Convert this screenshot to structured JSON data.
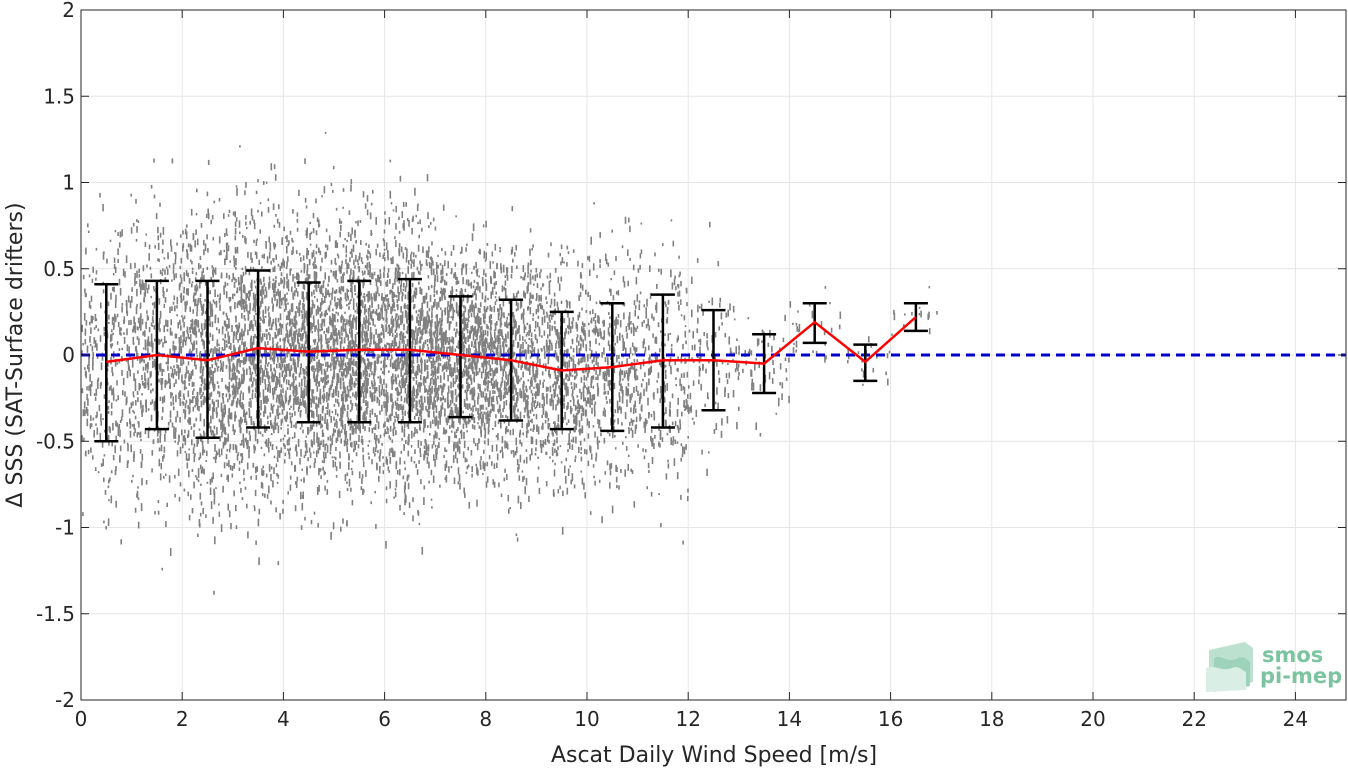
{
  "chart_data": {
    "type": "scatter",
    "title": "",
    "xlabel": "Ascat Daily Wind Speed [m/s]",
    "ylabel": "Δ SSS (SAT-Surface drifters)",
    "xlim": [
      0,
      25
    ],
    "ylim": [
      -2,
      2
    ],
    "xticks": [
      0,
      2,
      4,
      6,
      8,
      10,
      12,
      14,
      16,
      18,
      20,
      22,
      24
    ],
    "yticks": [
      2,
      1.5,
      1,
      0.5,
      0,
      -0.5,
      -1,
      -1.5,
      -2
    ],
    "grid": true,
    "colors": {
      "scatter": "#808080",
      "mean_line": "#ff0000",
      "zero_line": "#0000cc",
      "error_bars": "#000000"
    },
    "scatter_points_note": "dense cloud of grey individual matchup points",
    "zero_line_y": 0,
    "binned_stats": {
      "x": [
        0.5,
        1.5,
        2.5,
        3.5,
        4.5,
        5.5,
        6.5,
        7.5,
        8.5,
        9.5,
        10.5,
        11.5,
        12.5,
        13.5,
        14.5,
        15.5,
        16.5
      ],
      "mean": [
        -0.04,
        0.0,
        -0.03,
        0.04,
        0.02,
        0.03,
        0.03,
        0.0,
        -0.03,
        -0.09,
        -0.07,
        -0.03,
        -0.03,
        -0.05,
        0.19,
        -0.04,
        0.22
      ],
      "upper": [
        0.41,
        0.43,
        0.43,
        0.49,
        0.42,
        0.43,
        0.44,
        0.34,
        0.32,
        0.25,
        0.3,
        0.35,
        0.26,
        0.12,
        0.3,
        0.06,
        0.3
      ],
      "lower": [
        -0.5,
        -0.43,
        -0.48,
        -0.42,
        -0.39,
        -0.39,
        -0.39,
        -0.36,
        -0.38,
        -0.43,
        -0.44,
        -0.42,
        -0.32,
        -0.22,
        0.07,
        -0.15,
        0.14
      ]
    }
  },
  "logo": {
    "line1": "smos",
    "line2": "pi-mep"
  }
}
